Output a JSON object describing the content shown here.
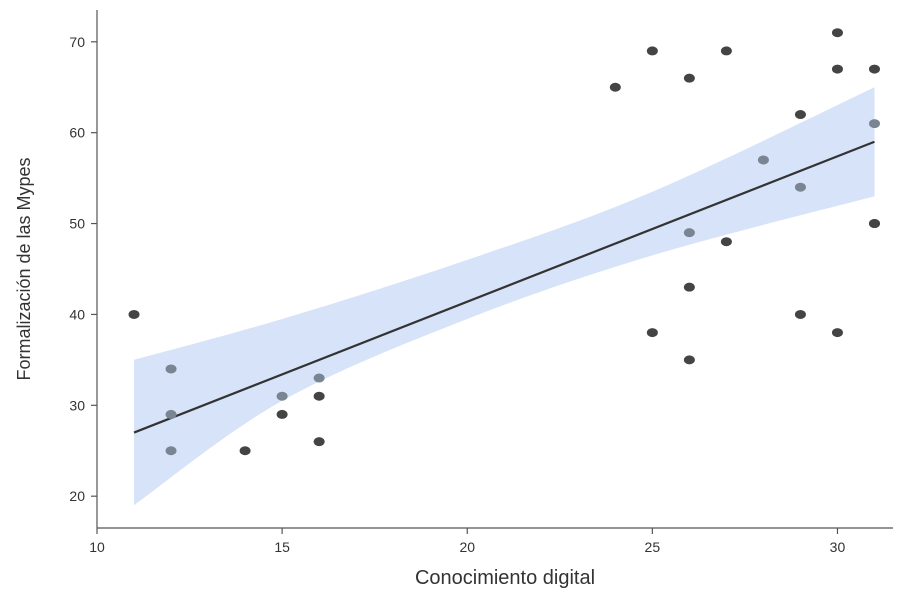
{
  "chart_data": {
    "type": "scatter",
    "title": "",
    "xlabel": "Conocimiento digital",
    "ylabel": "Formalización de las Mypes",
    "xlim": [
      10,
      31.5
    ],
    "ylim": [
      16.5,
      73.5
    ],
    "xticks": [
      10,
      15,
      20,
      25,
      30
    ],
    "yticks": [
      20,
      30,
      40,
      50,
      60,
      70
    ],
    "grid": false,
    "colors": {
      "points": "#444444",
      "points_in_band": "#7a8594",
      "band": "#d6e3f8",
      "line": "#333333",
      "axis": "#555555"
    },
    "points": [
      {
        "x": 11,
        "y": 40
      },
      {
        "x": 12,
        "y": 34
      },
      {
        "x": 12,
        "y": 29
      },
      {
        "x": 12,
        "y": 25
      },
      {
        "x": 14,
        "y": 25
      },
      {
        "x": 15,
        "y": 31
      },
      {
        "x": 15,
        "y": 29
      },
      {
        "x": 16,
        "y": 33
      },
      {
        "x": 16,
        "y": 31
      },
      {
        "x": 16,
        "y": 26
      },
      {
        "x": 24,
        "y": 65
      },
      {
        "x": 25,
        "y": 69
      },
      {
        "x": 25,
        "y": 38
      },
      {
        "x": 26,
        "y": 66
      },
      {
        "x": 26,
        "y": 49
      },
      {
        "x": 26,
        "y": 43
      },
      {
        "x": 26,
        "y": 35
      },
      {
        "x": 27,
        "y": 69
      },
      {
        "x": 27,
        "y": 48
      },
      {
        "x": 28,
        "y": 57
      },
      {
        "x": 29,
        "y": 62
      },
      {
        "x": 29,
        "y": 54
      },
      {
        "x": 29,
        "y": 40
      },
      {
        "x": 30,
        "y": 71
      },
      {
        "x": 30,
        "y": 67
      },
      {
        "x": 30,
        "y": 38
      },
      {
        "x": 31,
        "y": 67
      },
      {
        "x": 31,
        "y": 61
      },
      {
        "x": 31,
        "y": 50
      },
      {
        "x": 31,
        "y": 50
      }
    ],
    "fit_line": {
      "x": [
        11,
        31
      ],
      "y": [
        27,
        59
      ]
    },
    "confidence_band": {
      "x": [
        11,
        15,
        20,
        25,
        31
      ],
      "lower": [
        19,
        30.5,
        39.5,
        46.5,
        53
      ],
      "upper": [
        35,
        39.5,
        46,
        53.5,
        65
      ]
    }
  }
}
